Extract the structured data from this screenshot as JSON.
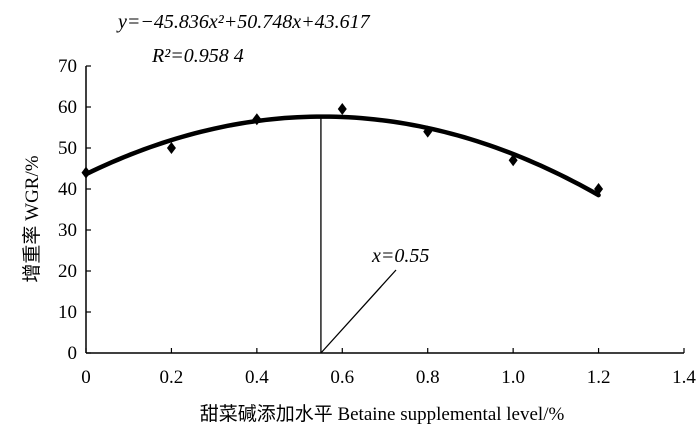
{
  "chart_data": {
    "type": "scatter",
    "title": "",
    "xlabel": "甜菜碱添加水平  Betaine supplemental level/%",
    "ylabel": "增重率  WGR/%",
    "xlim": [
      0,
      1.4
    ],
    "ylim": [
      0,
      70
    ],
    "x_ticks": [
      "0",
      "0.2",
      "0.4",
      "0.6",
      "0.8",
      "1.0",
      "1.2",
      "1.4"
    ],
    "y_ticks": [
      "0",
      "10",
      "20",
      "30",
      "40",
      "50",
      "60",
      "70"
    ],
    "grid": false,
    "legend": "none",
    "marker": "diamond",
    "series": [
      {
        "x": [
          0,
          0.2,
          0.4,
          0.6,
          0.8,
          1.0,
          1.2
        ],
        "y": [
          44,
          50,
          57,
          59.5,
          54,
          47,
          40
        ]
      }
    ],
    "fit": {
      "type": "quadratic",
      "a": -45.836,
      "b": 50.748,
      "c": 43.617,
      "x_range": [
        0,
        1.2
      ]
    },
    "vertex_x": 0.55,
    "annotations": {
      "equation": "y=−45.836x²+50.748x+43.617",
      "r_squared": "R²=0.958 4",
      "vertex_label": "x=0.55"
    }
  }
}
